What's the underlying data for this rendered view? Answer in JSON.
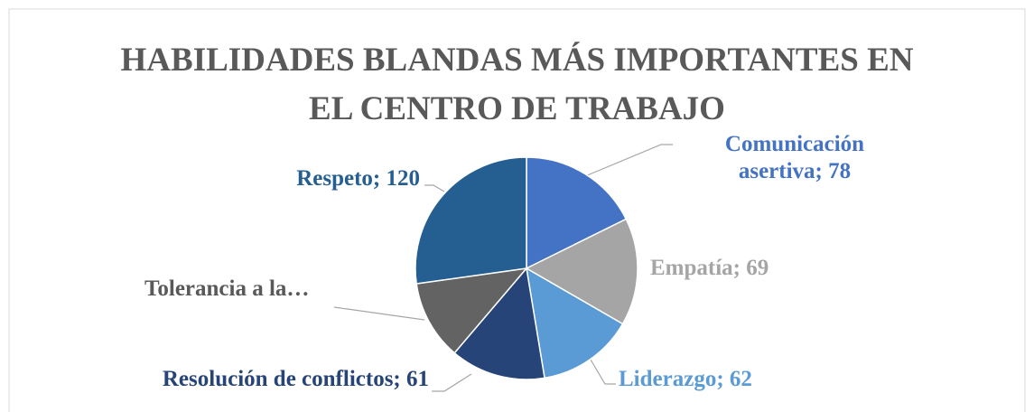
{
  "chart_data": {
    "type": "pie",
    "title": "HABILIDADES BLANDAS MÁS IMPORTANTES EN EL CENTRO DE TRABAJO",
    "categories": [
      "Comunicación asertiva",
      "Empatía",
      "Liderazgo",
      "Resolución de conflictos",
      "Tolerancia a la…",
      "Respeto"
    ],
    "values": [
      78,
      69,
      62,
      61,
      51,
      120
    ],
    "value_labels": [
      "Comunicación asertiva; 78",
      "Empatía;  69",
      "Liderazgo;  62",
      "Resolución de conflictos; 61",
      "Tolerancia a la…",
      "Respeto; 120"
    ],
    "colors": [
      "#4472c4",
      "#a5a5a5",
      "#5b9bd5",
      "#264478",
      "#636363",
      "#255e91"
    ]
  }
}
